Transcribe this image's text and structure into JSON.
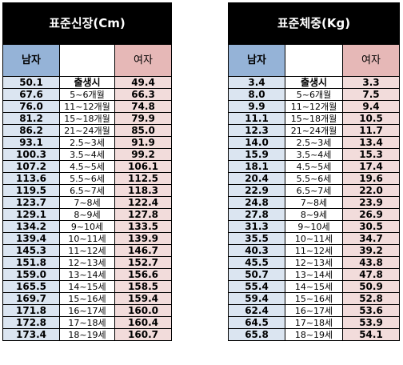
{
  "height_table": {
    "title": "표준신장(Cm)",
    "male_header": "남자",
    "female_header": "여자",
    "rows": [
      {
        "age": "출생시",
        "male": "50.1",
        "female": "49.4"
      },
      {
        "age": "5~6개월",
        "male": "67.6",
        "female": "66.3"
      },
      {
        "age": "11~12개월",
        "male": "76.0",
        "female": "74.8"
      },
      {
        "age": "15~18개월",
        "male": "81.2",
        "female": "79.9"
      },
      {
        "age": "21~24개월",
        "male": "86.2",
        "female": "85.0"
      },
      {
        "age": "2.5~3세",
        "male": "93.1",
        "female": "91.9"
      },
      {
        "age": "3.5~4세",
        "male": "100.3",
        "female": "99.2"
      },
      {
        "age": "4.5~5세",
        "male": "107.2",
        "female": "106.1"
      },
      {
        "age": "5.5~6세",
        "male": "113.6",
        "female": "112.5"
      },
      {
        "age": "6.5~7세",
        "male": "119.5",
        "female": "118.3"
      },
      {
        "age": "7~8세",
        "male": "123.7",
        "female": "122.4"
      },
      {
        "age": "8~9세",
        "male": "129.1",
        "female": "127.8"
      },
      {
        "age": "9~10세",
        "male": "134.2",
        "female": "133.5"
      },
      {
        "age": "10~11세",
        "male": "139.4",
        "female": "139.9"
      },
      {
        "age": "11~12세",
        "male": "145.3",
        "female": "146.7"
      },
      {
        "age": "12~13세",
        "male": "151.8",
        "female": "152.7"
      },
      {
        "age": "13~14세",
        "male": "159.0",
        "female": "156.6"
      },
      {
        "age": "14~15세",
        "male": "165.5",
        "female": "158.5"
      },
      {
        "age": "15~16세",
        "male": "169.7",
        "female": "159.4"
      },
      {
        "age": "16~17세",
        "male": "171.8",
        "female": "160.0"
      },
      {
        "age": "17~18세",
        "male": "172.8",
        "female": "160.4"
      },
      {
        "age": "18~19세",
        "male": "173.4",
        "female": "160.7"
      }
    ]
  },
  "weight_table": {
    "title": "표준체중(Kg)",
    "male_header": "남자",
    "female_header": "여자",
    "rows": [
      {
        "age": "출생시",
        "male": "3.4",
        "female": "3.3"
      },
      {
        "age": "5~6개월",
        "male": "8.0",
        "female": "7.5"
      },
      {
        "age": "11~12개월",
        "male": "9.9",
        "female": "9.4"
      },
      {
        "age": "15~18개월",
        "male": "11.1",
        "female": "10.5"
      },
      {
        "age": "21~24개월",
        "male": "12.3",
        "female": "11.7"
      },
      {
        "age": "2.5~3세",
        "male": "14.0",
        "female": "13.4"
      },
      {
        "age": "3.5~4세",
        "male": "15.9",
        "female": "15.3"
      },
      {
        "age": "4.5~5세",
        "male": "18.1",
        "female": "17.4"
      },
      {
        "age": "5.5~6세",
        "male": "20.4",
        "female": "19.6"
      },
      {
        "age": "6.5~7세",
        "male": "22.9",
        "female": "22.0"
      },
      {
        "age": "7~8세",
        "male": "24.8",
        "female": "23.9"
      },
      {
        "age": "8~9세",
        "male": "27.8",
        "female": "26.9"
      },
      {
        "age": "9~10세",
        "male": "31.3",
        "female": "30.5"
      },
      {
        "age": "10~11세",
        "male": "35.5",
        "female": "34.7"
      },
      {
        "age": "11~12세",
        "male": "40.3",
        "female": "39.2"
      },
      {
        "age": "12~13세",
        "male": "45.5",
        "female": "43.8"
      },
      {
        "age": "13~14세",
        "male": "50.7",
        "female": "47.8"
      },
      {
        "age": "14~15세",
        "male": "55.4",
        "female": "50.9"
      },
      {
        "age": "15~16세",
        "male": "59.4",
        "female": "52.8"
      },
      {
        "age": "16~17세",
        "male": "62.4",
        "female": "53.6"
      },
      {
        "age": "17~18세",
        "male": "64.5",
        "female": "53.9"
      },
      {
        "age": "18~19세",
        "male": "65.8",
        "female": "54.1"
      }
    ]
  }
}
